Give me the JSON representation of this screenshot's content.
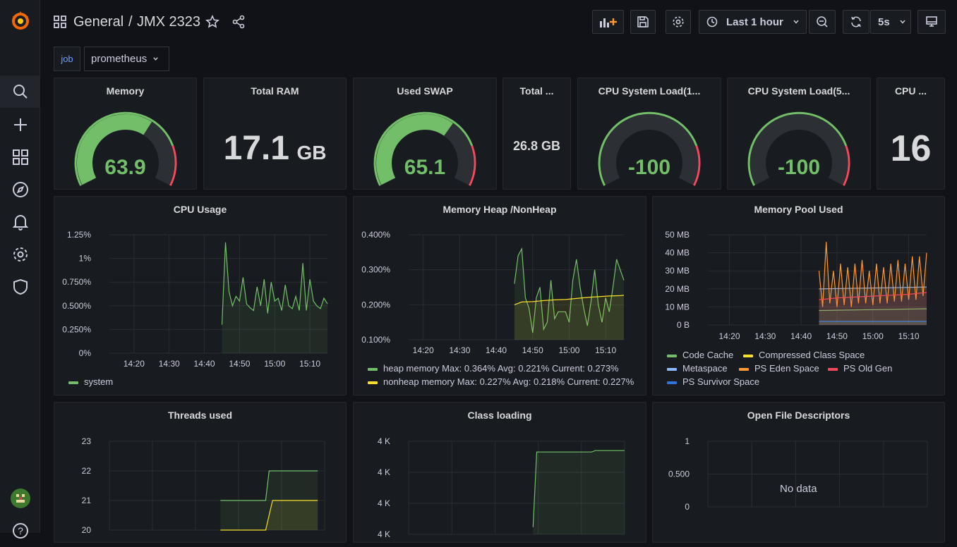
{
  "nav": {
    "items": [
      {
        "name": "search-icon"
      },
      {
        "name": "plus-icon"
      },
      {
        "name": "dashboards-icon"
      },
      {
        "name": "explore-icon"
      },
      {
        "name": "alerting-bell-icon"
      },
      {
        "name": "gear-icon"
      },
      {
        "name": "shield-icon"
      }
    ]
  },
  "header": {
    "folder": "General",
    "separator": "/",
    "title": "JMX 2323",
    "time_range": "Last 1 hour",
    "refresh_interval": "5s"
  },
  "variables": {
    "label": "job",
    "value": "prometheus"
  },
  "stats": {
    "memory": {
      "title": "Memory",
      "value": "63.9",
      "percent": 63.9
    },
    "total_ram": {
      "title": "Total RAM",
      "value": "17.1",
      "unit": "GB"
    },
    "used_swap": {
      "title": "Used SWAP",
      "value": "65.1",
      "percent": 65.1
    },
    "total_swap": {
      "title": "Total ...",
      "value": "26.8 GB"
    },
    "cpu_load1": {
      "title": "CPU System Load(1...",
      "value": "-100"
    },
    "cpu_load5": {
      "title": "CPU System Load(5...",
      "value": "-100"
    },
    "cpu_cores": {
      "title": "CPU ...",
      "value": "16"
    }
  },
  "colors": {
    "green": "#73bf69",
    "yellow": "#fade2a",
    "red": "#f2495c",
    "orange": "#ff9830",
    "light_blue": "#8ab8ff",
    "cyan": "#5794f2",
    "blue": "#3274d9",
    "gauge_track": "#2c2f34"
  },
  "panels": {
    "cpu_usage": {
      "title": "CPU Usage",
      "legend": [
        "system"
      ]
    },
    "heap": {
      "title": "Memory Heap /NonHeap",
      "legend": [
        "heap memory  Max: 0.364%  Avg: 0.221%  Current: 0.273%",
        "nonheap memory  Max: 0.227%  Avg: 0.218%  Current: 0.227%"
      ]
    },
    "pool": {
      "title": "Memory Pool Used",
      "legend": [
        "Code Cache",
        "Compressed Class Space",
        "Metaspace",
        "PS Eden Space",
        "PS Old Gen",
        "PS Survivor Space"
      ]
    },
    "threads": {
      "title": "Threads used"
    },
    "classes": {
      "title": "Class loading"
    },
    "fds": {
      "title": "Open File Descriptors",
      "message": "No data"
    }
  },
  "chart_data": [
    {
      "type": "line",
      "title": "CPU Usage",
      "x_ticks": [
        "14:20",
        "14:30",
        "14:40",
        "14:50",
        "15:00",
        "15:10"
      ],
      "y_ticks": [
        "0%",
        "0.250%",
        "0.500%",
        "0.750%",
        "1%",
        "1.25%"
      ],
      "ylim": [
        0,
        1.25
      ],
      "x_start": "14:13",
      "x_end": "15:15",
      "series": [
        {
          "name": "system",
          "x": [
            "14:45",
            "14:46",
            "14:47",
            "14:48",
            "14:49",
            "14:50",
            "14:51",
            "14:52",
            "14:53",
            "14:54",
            "14:55",
            "14:56",
            "14:57",
            "14:58",
            "14:59",
            "15:00",
            "15:01",
            "15:02",
            "15:03",
            "15:04",
            "15:05",
            "15:06",
            "15:07",
            "15:08",
            "15:09",
            "15:10",
            "15:11",
            "15:12",
            "15:13",
            "15:14",
            "15:15"
          ],
          "values": [
            0.3,
            1.17,
            0.65,
            0.5,
            0.6,
            0.55,
            0.8,
            0.52,
            0.48,
            0.45,
            0.7,
            0.5,
            0.78,
            0.42,
            0.75,
            0.55,
            0.58,
            0.45,
            0.72,
            0.5,
            0.47,
            0.6,
            0.45,
            0.95,
            0.45,
            0.78,
            0.55,
            0.5,
            0.47,
            0.58,
            0.52
          ]
        }
      ]
    },
    {
      "type": "line",
      "title": "Memory Heap /NonHeap",
      "x_ticks": [
        "14:20",
        "14:30",
        "14:40",
        "14:50",
        "15:00",
        "15:10"
      ],
      "y_ticks": [
        "0.100%",
        "0.200%",
        "0.300%",
        "0.400%"
      ],
      "ylim": [
        0.1,
        0.4
      ],
      "x_start": "14:16",
      "x_end": "15:15",
      "series": [
        {
          "name": "heap memory",
          "x": [
            "14:45",
            "14:46",
            "14:47",
            "14:48",
            "14:49",
            "14:50",
            "14:51",
            "14:52",
            "14:53",
            "14:54",
            "14:55",
            "14:56",
            "14:57",
            "14:58",
            "14:59",
            "15:00",
            "15:01",
            "15:02",
            "15:03",
            "15:04",
            "15:05",
            "15:06",
            "15:07",
            "15:08",
            "15:09",
            "15:10",
            "15:11",
            "15:12",
            "15:13",
            "15:14",
            "15:15"
          ],
          "values": [
            0.26,
            0.34,
            0.36,
            0.22,
            0.19,
            0.12,
            0.22,
            0.25,
            0.13,
            0.15,
            0.27,
            0.16,
            0.18,
            0.18,
            0.18,
            0.15,
            0.27,
            0.33,
            0.25,
            0.19,
            0.14,
            0.21,
            0.3,
            0.2,
            0.15,
            0.22,
            0.18,
            0.25,
            0.33,
            0.3,
            0.27
          ]
        },
        {
          "name": "nonheap memory",
          "x": [
            "14:45",
            "14:47",
            "14:50",
            "14:53",
            "14:56",
            "14:59",
            "15:02",
            "15:05",
            "15:08",
            "15:11",
            "15:14",
            "15:15"
          ],
          "values": [
            0.2,
            0.208,
            0.209,
            0.212,
            0.214,
            0.215,
            0.218,
            0.221,
            0.223,
            0.225,
            0.226,
            0.227
          ]
        }
      ]
    },
    {
      "type": "line",
      "title": "Memory Pool Used",
      "x_ticks": [
        "14:20",
        "14:30",
        "14:40",
        "14:50",
        "15:00",
        "15:10"
      ],
      "y_ticks": [
        "0 B",
        "10 MB",
        "20 MB",
        "30 MB",
        "40 MB",
        "50 MB"
      ],
      "ylim": [
        0,
        50
      ],
      "x_start": "14:14",
      "x_end": "15:15",
      "series": [
        {
          "name": "Code Cache",
          "x": [
            "14:45",
            "15:15"
          ],
          "values": [
            8,
            9
          ]
        },
        {
          "name": "Compressed Class Space",
          "x": [
            "14:45",
            "15:15"
          ],
          "values": [
            2,
            2
          ]
        },
        {
          "name": "Metaspace",
          "x": [
            "14:45",
            "15:15"
          ],
          "values": [
            20,
            21
          ]
        },
        {
          "name": "PS Eden Space",
          "x": [
            "14:45",
            "14:46",
            "14:47",
            "14:48",
            "14:49",
            "14:50",
            "14:51",
            "14:52",
            "14:53",
            "14:54",
            "14:55",
            "14:56",
            "14:57",
            "14:58",
            "14:59",
            "15:00",
            "15:01",
            "15:02",
            "15:03",
            "15:04",
            "15:05",
            "15:06",
            "15:07",
            "15:08",
            "15:09",
            "15:10",
            "15:11",
            "15:12",
            "15:13",
            "15:14",
            "15:15"
          ],
          "values": [
            30,
            10,
            46,
            12,
            30,
            10,
            34,
            11,
            32,
            10,
            34,
            12,
            36,
            12,
            30,
            11,
            34,
            12,
            32,
            12,
            34,
            13,
            36,
            13,
            34,
            14,
            38,
            14,
            38,
            16,
            40
          ]
        },
        {
          "name": "PS Old Gen",
          "x": [
            "14:45",
            "14:50",
            "15:00",
            "15:10",
            "15:15"
          ],
          "values": [
            14,
            15,
            16,
            17,
            18
          ]
        },
        {
          "name": "PS Survivor Space",
          "x": [
            "14:45",
            "15:15"
          ],
          "values": [
            2,
            2
          ]
        }
      ]
    },
    {
      "type": "line",
      "title": "Threads used",
      "y_ticks": [
        "20",
        "21",
        "22",
        "23"
      ],
      "ylim": [
        20,
        23
      ],
      "x_start": "14:13",
      "x_end": "15:15",
      "series": [
        {
          "x": [
            "14:45",
            "14:58",
            "14:59",
            "15:13"
          ],
          "values": [
            21,
            21,
            22,
            22
          ]
        },
        {
          "x": [
            "14:45",
            "14:58",
            "15:00",
            "15:13"
          ],
          "values": [
            20,
            20,
            21,
            21
          ]
        }
      ]
    },
    {
      "type": "line",
      "title": "Class loading",
      "y_ticks": [
        "4 K",
        "4 K",
        "4 K",
        "4 K"
      ],
      "x_start": "14:16",
      "x_end": "15:15",
      "series": [
        {
          "x": [
            "14:50",
            "14:51",
            "15:06",
            "15:07",
            "15:15"
          ],
          "values": [
            2800,
            3850,
            3850,
            3870,
            3870
          ]
        }
      ]
    },
    {
      "type": "line",
      "title": "Open File Descriptors",
      "y_ticks": [
        "0",
        "0.500",
        "1"
      ],
      "ylim": [
        0,
        1
      ],
      "series": []
    }
  ]
}
